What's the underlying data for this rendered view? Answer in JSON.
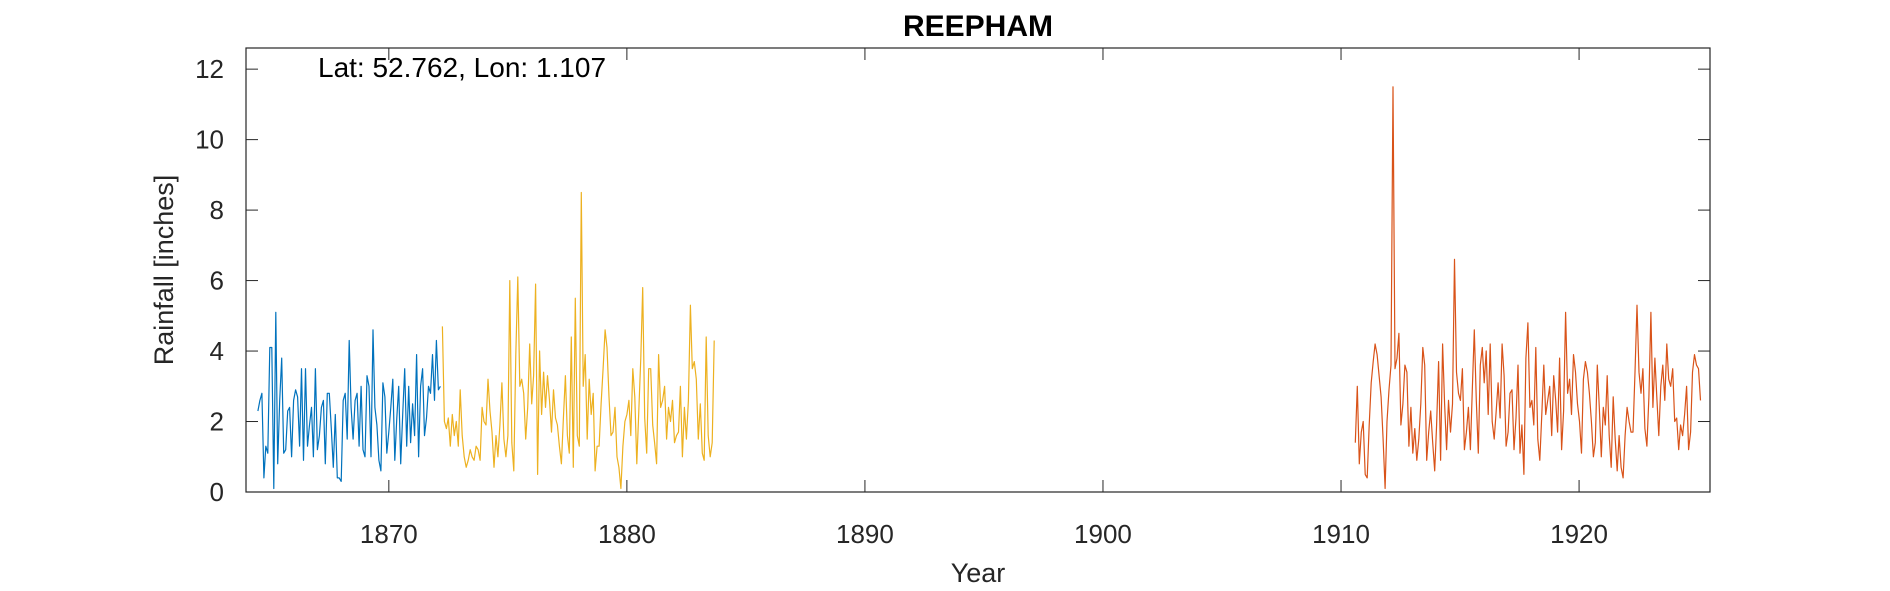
{
  "chart_data": {
    "type": "line",
    "title": "REEPHAM",
    "annotation": "Lat: 52.762, Lon: 1.107",
    "xlabel": "Year",
    "ylabel": "Rainfall [inches]",
    "xlim": [
      1864,
      1925.5
    ],
    "ylim": [
      0,
      12.6
    ],
    "xticks": [
      1870,
      1880,
      1890,
      1900,
      1910,
      1920
    ],
    "yticks": [
      0,
      2,
      4,
      6,
      8,
      10,
      12
    ],
    "grid": false,
    "box": true,
    "series": [
      {
        "color": "#0072BD",
        "x_start": 1864.5,
        "x_step": 0.083333,
        "values": [
          2.3,
          2.6,
          2.8,
          0.4,
          1.3,
          1.1,
          4.1,
          4.1,
          0.1,
          5.1,
          0.8,
          2.6,
          3.8,
          1.1,
          1.2,
          2.3,
          2.4,
          1.0,
          2.6,
          2.9,
          2.7,
          1.3,
          3.5,
          0.9,
          3.5,
          1.3,
          1.9,
          2.4,
          1.0,
          3.5,
          1.2,
          1.6,
          2.4,
          2.6,
          0.8,
          2.8,
          2.8,
          1.8,
          0.7,
          2.2,
          0.4,
          0.4,
          0.3,
          2.6,
          2.8,
          1.5,
          4.3,
          2.4,
          1.5,
          2.6,
          2.8,
          1.3,
          3.0,
          1.2,
          1.0,
          3.3,
          3.0,
          1.0,
          4.6,
          2.4,
          1.9,
          0.9,
          0.6,
          3.1,
          2.7,
          1.1,
          1.7,
          2.4,
          3.2,
          0.9,
          2.1,
          3.0,
          0.8,
          2.2,
          3.5,
          1.3,
          3.0,
          1.4,
          2.5,
          1.6,
          3.9,
          1.0,
          3.0,
          3.5,
          1.6,
          2.1,
          3.0,
          2.8,
          3.9,
          2.6,
          4.3,
          2.9,
          3.0
        ]
      },
      {
        "color": "#EDB120",
        "x_start": 1872.25,
        "x_step": 0.083333,
        "values": [
          4.7,
          2.0,
          1.8,
          2.1,
          1.3,
          2.2,
          1.6,
          2.0,
          1.3,
          2.9,
          1.6,
          1.0,
          0.7,
          0.9,
          1.2,
          1.0,
          0.9,
          1.3,
          1.2,
          0.9,
          2.4,
          2.0,
          1.9,
          3.2,
          2.3,
          1.7,
          0.7,
          1.6,
          1.0,
          1.9,
          3.1,
          1.5,
          1.0,
          1.6,
          6.0,
          1.4,
          0.6,
          3.9,
          6.1,
          3.0,
          3.2,
          2.8,
          1.5,
          2.4,
          4.2,
          2.5,
          3.3,
          5.9,
          0.5,
          4.0,
          2.2,
          3.4,
          2.4,
          3.3,
          2.6,
          1.7,
          2.9,
          2.1,
          1.9,
          1.3,
          0.8,
          2.1,
          3.3,
          1.6,
          1.1,
          4.4,
          0.7,
          5.5,
          1.6,
          1.3,
          8.5,
          3.0,
          3.9,
          1.5,
          3.2,
          2.2,
          2.8,
          0.6,
          1.3,
          1.3,
          2.5,
          3.5,
          4.6,
          4.1,
          2.7,
          1.6,
          1.7,
          2.4,
          1.0,
          0.7,
          0.1,
          1.3,
          2.0,
          2.2,
          2.6,
          1.6,
          3.5,
          2.7,
          0.8,
          2.3,
          3.8,
          5.8,
          2.1,
          1.1,
          3.5,
          3.5,
          1.9,
          1.4,
          0.8,
          3.9,
          2.4,
          2.6,
          3.0,
          1.5,
          2.4,
          2.0,
          2.6,
          1.4,
          1.6,
          1.7,
          3.0,
          1.0,
          2.4,
          1.5,
          2.6,
          5.3,
          3.5,
          3.7,
          3.2,
          1.5,
          2.5,
          1.1,
          0.9,
          4.4,
          1.6,
          1.0,
          1.4,
          4.3
        ]
      },
      {
        "color": "#D95319",
        "x_start": 1910.6,
        "x_step": 0.083333,
        "values": [
          1.4,
          3.0,
          0.8,
          1.7,
          2.0,
          0.5,
          0.4,
          1.9,
          3.1,
          3.7,
          4.2,
          3.9,
          3.3,
          2.7,
          1.5,
          0.1,
          2.0,
          2.9,
          3.6,
          11.5,
          3.5,
          3.8,
          4.5,
          1.9,
          2.5,
          3.6,
          3.4,
          1.3,
          2.4,
          1.1,
          1.8,
          0.9,
          1.5,
          2.5,
          4.1,
          3.6,
          0.9,
          1.7,
          2.3,
          1.4,
          0.6,
          1.9,
          3.7,
          0.9,
          4.2,
          2.5,
          1.2,
          2.6,
          1.7,
          2.5,
          6.6,
          3.4,
          2.8,
          2.6,
          3.5,
          1.2,
          1.7,
          2.4,
          1.2,
          2.9,
          4.6,
          2.6,
          1.1,
          3.6,
          4.1,
          3.1,
          4.0,
          2.2,
          4.2,
          2.0,
          1.5,
          2.3,
          3.1,
          2.1,
          4.2,
          3.3,
          1.3,
          1.7,
          2.8,
          2.9,
          1.2,
          2.1,
          3.6,
          1.1,
          1.9,
          0.5,
          3.8,
          4.8,
          2.4,
          2.6,
          1.9,
          4.1,
          1.5,
          0.9,
          2.2,
          3.6,
          2.2,
          2.6,
          3.0,
          1.6,
          3.3,
          2.6,
          1.7,
          3.8,
          1.2,
          2.3,
          5.1,
          2.8,
          3.2,
          2.2,
          3.9,
          3.4,
          2.5,
          2.0,
          1.1,
          3.2,
          3.7,
          3.4,
          2.8,
          2.0,
          1.0,
          1.4,
          3.6,
          2.4,
          1.0,
          2.4,
          1.9,
          3.3,
          1.6,
          0.7,
          2.7,
          1.5,
          0.6,
          1.6,
          0.7,
          0.4,
          1.6,
          2.4,
          2.0,
          1.7,
          1.7,
          3.4,
          5.3,
          3.4,
          2.8,
          3.5,
          1.8,
          1.3,
          2.7,
          5.1,
          2.4,
          3.8,
          2.7,
          1.6,
          3.0,
          3.6,
          2.6,
          4.2,
          3.2,
          3.0,
          3.5,
          2.0,
          2.1,
          1.2,
          1.9,
          1.6,
          2.2,
          3.0,
          1.2,
          1.7,
          3.4,
          3.9,
          3.6,
          3.5,
          2.6
        ]
      }
    ]
  }
}
